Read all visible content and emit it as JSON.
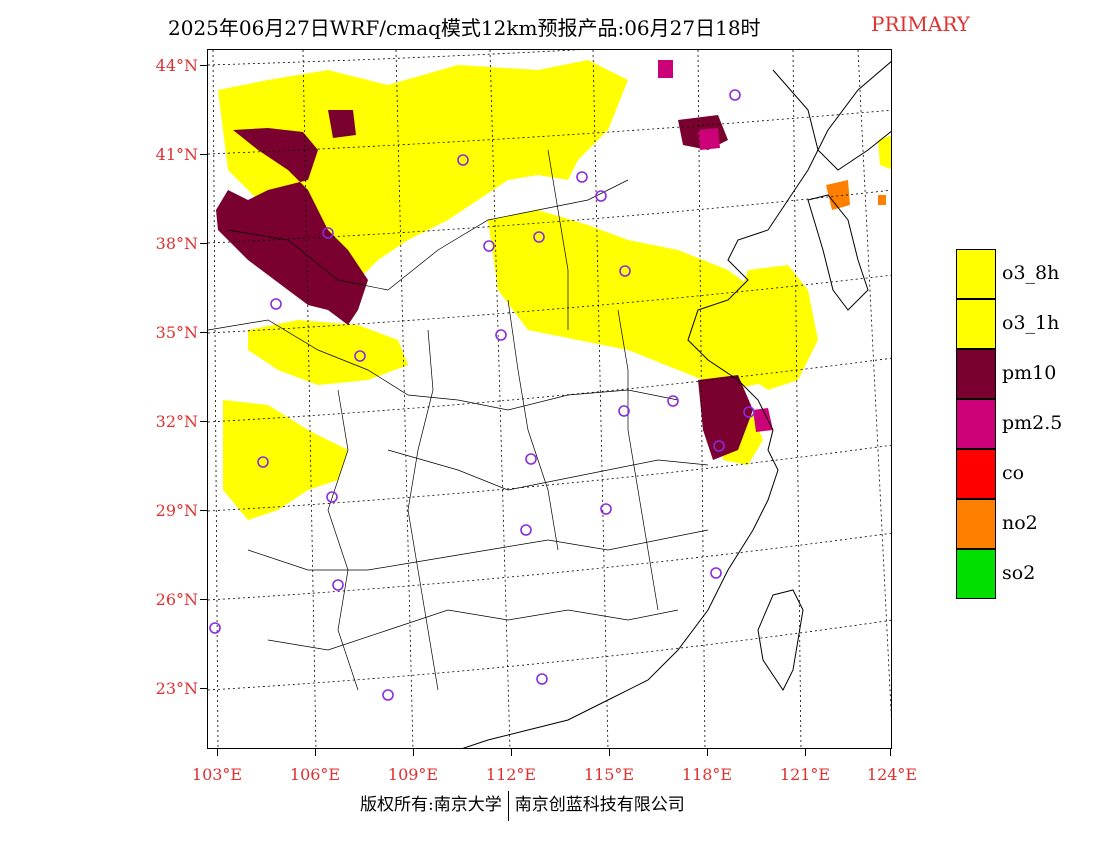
{
  "title": {
    "main": "2025年06月27日WRF/cmaq模式12km预报产品:06月27日18时",
    "tag": "PRIMARY"
  },
  "axes": {
    "lat_labels": [
      "44°N",
      "41°N",
      "38°N",
      "35°N",
      "32°N",
      "29°N",
      "26°N",
      "23°N"
    ],
    "lon_labels": [
      "103°E",
      "106°E",
      "109°E",
      "112°E",
      "115°E",
      "118°E",
      "121°E",
      "124°E"
    ]
  },
  "legend": {
    "items": [
      {
        "label": "o3_8h",
        "color": "#ffff00"
      },
      {
        "label": "o3_1h",
        "color": "#ffff00"
      },
      {
        "label": "pm10",
        "color": "#7a0030"
      },
      {
        "label": "pm2.5",
        "color": "#cc0077"
      },
      {
        "label": "co",
        "color": "#ff0000"
      },
      {
        "label": "no2",
        "color": "#ff8000"
      },
      {
        "label": "so2",
        "color": "#00e000"
      }
    ]
  },
  "copyright": {
    "left": "版权所有:南京大学",
    "right": "南京创蓝科技有限公司"
  },
  "colors": {
    "o3": "#ffff00",
    "pm10": "#7a0030",
    "pm25": "#cc0077",
    "no2": "#ff8000",
    "station": "#8a2be2",
    "label": "#e03030"
  }
}
